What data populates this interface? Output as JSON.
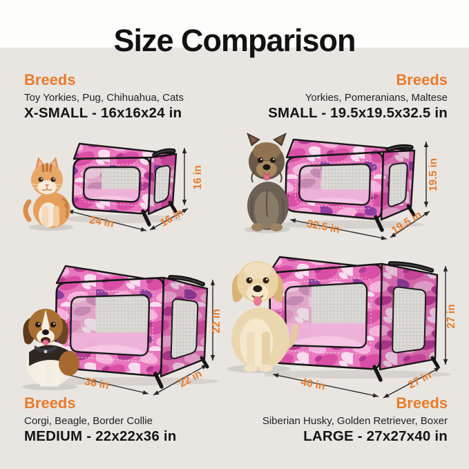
{
  "title": "Size Comparison",
  "colors": {
    "accent": "#e87b2c",
    "background": "#e9e6e1",
    "header_background": "#fdfdfc",
    "text": "#141414",
    "camo": {
      "base": "#e977bd",
      "mid": "#d94fa6",
      "dark1": "#b43b94",
      "dark2": "#8e3e9e",
      "light1": "#f6b1dc",
      "light2": "#fbdcee"
    },
    "mesh_background": "#dcdad6",
    "mesh_line": "#c3c1bd"
  },
  "sections": {
    "xsmall": {
      "breeds_heading": "Breeds",
      "breeds": "Toy Yorkies, Pug, Chihuahua, Cats",
      "size_label": "X-SMALL - 16x16x24 in",
      "height_label": "16 in",
      "length_label": "24 in",
      "depth_label": "16 in",
      "animal": "cat"
    },
    "small": {
      "breeds_heading": "Breeds",
      "breeds": "Yorkies, Pomeranians, Maltese",
      "size_label": "SMALL - 19.5x19.5x32.5 in",
      "height_label": "19.5 in",
      "length_label": "32.5 in",
      "depth_label": "19.5 in",
      "animal": "yorkie"
    },
    "medium": {
      "breeds_heading": "Breeds",
      "breeds": "Corgi, Beagle, Border Collie",
      "size_label": "MEDIUM - 22x22x36 in",
      "height_label": "22 in",
      "length_label": "36 in",
      "depth_label": "22 in",
      "animal": "beagle"
    },
    "large": {
      "breeds_heading": "Breeds",
      "breeds": "Siberian Husky, Golden Retriever, Boxer",
      "size_label": "LARGE - 27x27x40 in",
      "height_label": "27 in",
      "length_label": "40 in",
      "depth_label": "27 in",
      "animal": "golden-retriever"
    }
  }
}
